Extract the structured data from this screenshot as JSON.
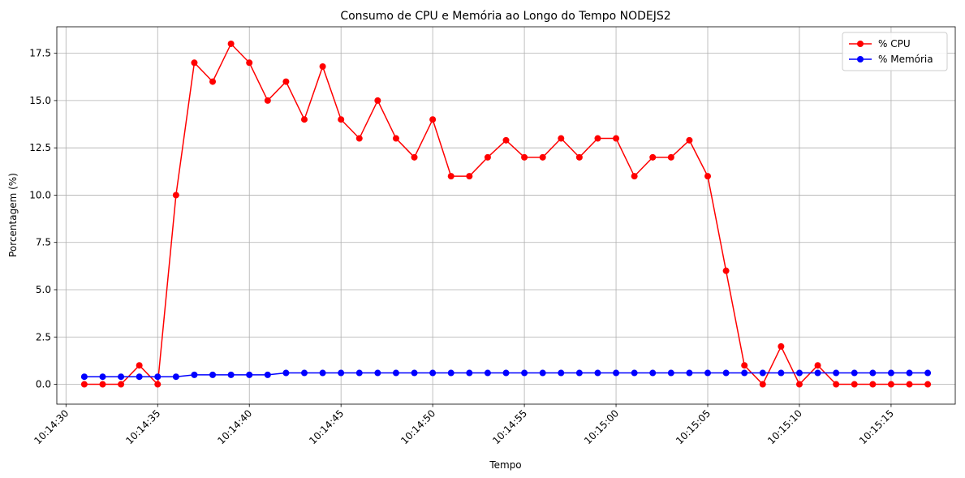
{
  "chart_data": {
    "type": "line",
    "title": "Consumo de CPU e Memória ao Longo do Tempo NODEJS2",
    "xlabel": "Tempo",
    "ylabel": "Porcentagem (%)",
    "x": [
      "10:14:31",
      "10:14:32",
      "10:14:33",
      "10:14:34",
      "10:14:35",
      "10:14:36",
      "10:14:37",
      "10:14:38",
      "10:14:39",
      "10:14:40",
      "10:14:41",
      "10:14:42",
      "10:14:43",
      "10:14:44",
      "10:14:45",
      "10:14:46",
      "10:14:47",
      "10:14:48",
      "10:14:49",
      "10:14:50",
      "10:14:51",
      "10:14:52",
      "10:14:53",
      "10:14:54",
      "10:14:55",
      "10:14:56",
      "10:14:57",
      "10:14:58",
      "10:14:59",
      "10:15:00",
      "10:15:01",
      "10:15:02",
      "10:15:03",
      "10:15:04",
      "10:15:05",
      "10:15:06",
      "10:15:07",
      "10:15:08",
      "10:15:09",
      "10:15:10",
      "10:15:11",
      "10:15:12",
      "10:15:13",
      "10:15:14",
      "10:15:15",
      "10:15:16",
      "10:15:17"
    ],
    "xlim": [
      "10:14:29.5",
      "10:15:18.5"
    ],
    "xticks": [
      "10:14:30",
      "10:14:35",
      "10:14:40",
      "10:14:45",
      "10:14:50",
      "10:14:55",
      "10:15:00",
      "10:15:05",
      "10:15:10",
      "10:15:15"
    ],
    "ylim": [
      -1.05,
      18.9
    ],
    "yticks": [
      "0.0",
      "2.5",
      "5.0",
      "7.5",
      "10.0",
      "12.5",
      "15.0",
      "17.5"
    ],
    "grid": true,
    "legend_position": "top-right",
    "series": [
      {
        "name": "% CPU",
        "color": "#ff0000",
        "marker": "circle",
        "values": [
          0,
          0,
          0,
          1,
          0,
          10,
          17,
          16,
          18,
          17,
          15,
          16,
          14,
          16.8,
          14,
          13,
          15,
          13,
          12,
          14,
          11,
          11,
          12,
          12.9,
          12,
          12,
          13,
          12,
          13,
          13,
          11,
          12,
          12,
          12.9,
          11,
          6,
          1,
          0,
          2,
          0,
          1,
          0,
          0,
          0,
          0,
          0,
          0
        ]
      },
      {
        "name": "% Memória",
        "color": "#0000ff",
        "marker": "circle",
        "values": [
          0.4,
          0.4,
          0.4,
          0.4,
          0.4,
          0.4,
          0.5,
          0.5,
          0.5,
          0.5,
          0.5,
          0.6,
          0.6,
          0.6,
          0.6,
          0.6,
          0.6,
          0.6,
          0.6,
          0.6,
          0.6,
          0.6,
          0.6,
          0.6,
          0.6,
          0.6,
          0.6,
          0.6,
          0.6,
          0.6,
          0.6,
          0.6,
          0.6,
          0.6,
          0.6,
          0.6,
          0.6,
          0.6,
          0.6,
          0.6,
          0.6,
          0.6,
          0.6,
          0.6,
          0.6,
          0.6,
          0.6
        ]
      }
    ]
  }
}
